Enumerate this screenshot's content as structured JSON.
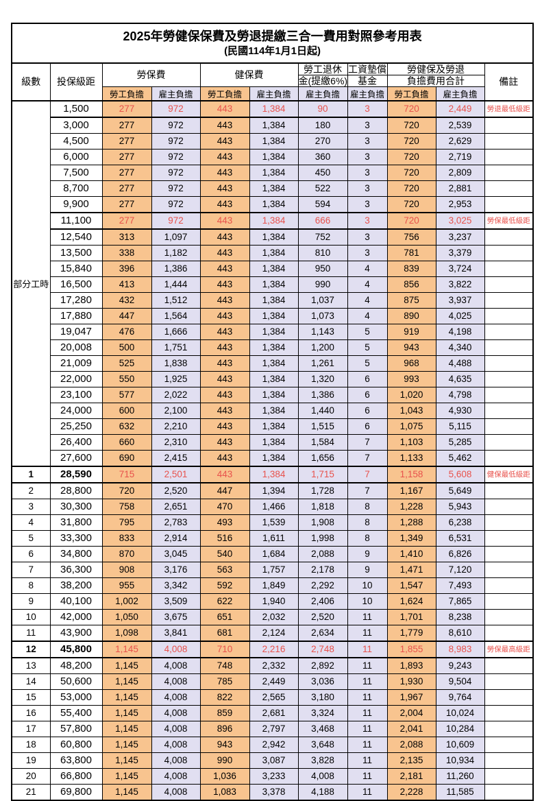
{
  "page": {
    "title": "2025年勞健保保費及勞退提繳三合一費用對照參考用表",
    "subtitle": "(民國114年1月1日起)"
  },
  "columns": {
    "level": "級數",
    "bracket": "投保級距",
    "labor_fee": "勞保費",
    "health_fee": "健保費",
    "pension_line1": "勞工退休",
    "pension_line2": "金(提繳6%)",
    "wage_fund_line1": "工資墊償",
    "wage_fund_line2": "基金",
    "total_line1": "勞健保及勞退",
    "total_line2": "負擔費用合計",
    "remark": "備註",
    "employee_share": "勞工負擔",
    "employer_share": "雇主負擔"
  },
  "part_time_label": "部分工時",
  "colors": {
    "employee_bg": "#F8C48F",
    "employer_bg": "#E1DFF1",
    "highlight_text": "#E8524C"
  },
  "rows": [
    {
      "level": "",
      "bracket": "1,500",
      "values": [
        "277",
        "972",
        "443",
        "1,384",
        "90",
        "3",
        "720",
        "2,449"
      ],
      "remark": "勞退最低級距",
      "highlight": true
    },
    {
      "level": "",
      "bracket": "3,000",
      "values": [
        "277",
        "972",
        "443",
        "1,384",
        "180",
        "3",
        "720",
        "2,539"
      ],
      "remark": ""
    },
    {
      "level": "",
      "bracket": "4,500",
      "values": [
        "277",
        "972",
        "443",
        "1,384",
        "270",
        "3",
        "720",
        "2,629"
      ],
      "remark": ""
    },
    {
      "level": "",
      "bracket": "6,000",
      "values": [
        "277",
        "972",
        "443",
        "1,384",
        "360",
        "3",
        "720",
        "2,719"
      ],
      "remark": ""
    },
    {
      "level": "",
      "bracket": "7,500",
      "values": [
        "277",
        "972",
        "443",
        "1,384",
        "450",
        "3",
        "720",
        "2,809"
      ],
      "remark": ""
    },
    {
      "level": "",
      "bracket": "8,700",
      "values": [
        "277",
        "972",
        "443",
        "1,384",
        "522",
        "3",
        "720",
        "2,881"
      ],
      "remark": ""
    },
    {
      "level": "",
      "bracket": "9,900",
      "values": [
        "277",
        "972",
        "443",
        "1,384",
        "594",
        "3",
        "720",
        "2,953"
      ],
      "remark": ""
    },
    {
      "level": "",
      "bracket": "11,100",
      "values": [
        "277",
        "972",
        "443",
        "1,384",
        "666",
        "3",
        "720",
        "3,025"
      ],
      "remark": "勞保最低級距",
      "highlight": true
    },
    {
      "level": "",
      "bracket": "12,540",
      "values": [
        "313",
        "1,097",
        "443",
        "1,384",
        "752",
        "3",
        "756",
        "3,237"
      ],
      "remark": ""
    },
    {
      "level": "",
      "bracket": "13,500",
      "values": [
        "338",
        "1,182",
        "443",
        "1,384",
        "810",
        "3",
        "781",
        "3,379"
      ],
      "remark": ""
    },
    {
      "level": "",
      "bracket": "15,840",
      "values": [
        "396",
        "1,386",
        "443",
        "1,384",
        "950",
        "4",
        "839",
        "3,724"
      ],
      "remark": ""
    },
    {
      "level": "",
      "bracket": "16,500",
      "values": [
        "413",
        "1,444",
        "443",
        "1,384",
        "990",
        "4",
        "856",
        "3,822"
      ],
      "remark": ""
    },
    {
      "level": "",
      "bracket": "17,280",
      "values": [
        "432",
        "1,512",
        "443",
        "1,384",
        "1,037",
        "4",
        "875",
        "3,937"
      ],
      "remark": ""
    },
    {
      "level": "",
      "bracket": "17,880",
      "values": [
        "447",
        "1,564",
        "443",
        "1,384",
        "1,073",
        "4",
        "890",
        "4,025"
      ],
      "remark": ""
    },
    {
      "level": "",
      "bracket": "19,047",
      "values": [
        "476",
        "1,666",
        "443",
        "1,384",
        "1,143",
        "5",
        "919",
        "4,198"
      ],
      "remark": ""
    },
    {
      "level": "",
      "bracket": "20,008",
      "values": [
        "500",
        "1,751",
        "443",
        "1,384",
        "1,200",
        "5",
        "943",
        "4,340"
      ],
      "remark": ""
    },
    {
      "level": "",
      "bracket": "21,009",
      "values": [
        "525",
        "1,838",
        "443",
        "1,384",
        "1,261",
        "5",
        "968",
        "4,488"
      ],
      "remark": ""
    },
    {
      "level": "",
      "bracket": "22,000",
      "values": [
        "550",
        "1,925",
        "443",
        "1,384",
        "1,320",
        "6",
        "993",
        "4,635"
      ],
      "remark": ""
    },
    {
      "level": "",
      "bracket": "23,100",
      "values": [
        "577",
        "2,022",
        "443",
        "1,384",
        "1,386",
        "6",
        "1,020",
        "4,798"
      ],
      "remark": ""
    },
    {
      "level": "",
      "bracket": "24,000",
      "values": [
        "600",
        "2,100",
        "443",
        "1,384",
        "1,440",
        "6",
        "1,043",
        "4,930"
      ],
      "remark": ""
    },
    {
      "level": "",
      "bracket": "25,250",
      "values": [
        "632",
        "2,210",
        "443",
        "1,384",
        "1,515",
        "6",
        "1,075",
        "5,115"
      ],
      "remark": ""
    },
    {
      "level": "",
      "bracket": "26,400",
      "values": [
        "660",
        "2,310",
        "443",
        "1,384",
        "1,584",
        "7",
        "1,103",
        "5,285"
      ],
      "remark": ""
    },
    {
      "level": "",
      "bracket": "27,600",
      "values": [
        "690",
        "2,415",
        "443",
        "1,384",
        "1,656",
        "7",
        "1,133",
        "5,462"
      ],
      "remark": ""
    },
    {
      "level": "1",
      "bracket": "28,590",
      "values": [
        "715",
        "2,501",
        "443",
        "1,384",
        "1,715",
        "7",
        "1,158",
        "5,608"
      ],
      "remark": "健保最低級距",
      "highlight": true,
      "bold": true
    },
    {
      "level": "2",
      "bracket": "28,800",
      "values": [
        "720",
        "2,520",
        "447",
        "1,394",
        "1,728",
        "7",
        "1,167",
        "5,649"
      ],
      "remark": ""
    },
    {
      "level": "3",
      "bracket": "30,300",
      "values": [
        "758",
        "2,651",
        "470",
        "1,466",
        "1,818",
        "8",
        "1,228",
        "5,943"
      ],
      "remark": ""
    },
    {
      "level": "4",
      "bracket": "31,800",
      "values": [
        "795",
        "2,783",
        "493",
        "1,539",
        "1,908",
        "8",
        "1,288",
        "6,238"
      ],
      "remark": ""
    },
    {
      "level": "5",
      "bracket": "33,300",
      "values": [
        "833",
        "2,914",
        "516",
        "1,611",
        "1,998",
        "8",
        "1,349",
        "6,531"
      ],
      "remark": ""
    },
    {
      "level": "6",
      "bracket": "34,800",
      "values": [
        "870",
        "3,045",
        "540",
        "1,684",
        "2,088",
        "9",
        "1,410",
        "6,826"
      ],
      "remark": ""
    },
    {
      "level": "7",
      "bracket": "36,300",
      "values": [
        "908",
        "3,176",
        "563",
        "1,757",
        "2,178",
        "9",
        "1,471",
        "7,120"
      ],
      "remark": ""
    },
    {
      "level": "8",
      "bracket": "38,200",
      "values": [
        "955",
        "3,342",
        "592",
        "1,849",
        "2,292",
        "10",
        "1,547",
        "7,493"
      ],
      "remark": ""
    },
    {
      "level": "9",
      "bracket": "40,100",
      "values": [
        "1,002",
        "3,509",
        "622",
        "1,940",
        "2,406",
        "10",
        "1,624",
        "7,865"
      ],
      "remark": ""
    },
    {
      "level": "10",
      "bracket": "42,000",
      "values": [
        "1,050",
        "3,675",
        "651",
        "2,032",
        "2,520",
        "11",
        "1,701",
        "8,238"
      ],
      "remark": ""
    },
    {
      "level": "11",
      "bracket": "43,900",
      "values": [
        "1,098",
        "3,841",
        "681",
        "2,124",
        "2,634",
        "11",
        "1,779",
        "8,610"
      ],
      "remark": ""
    },
    {
      "level": "12",
      "bracket": "45,800",
      "values": [
        "1,145",
        "4,008",
        "710",
        "2,216",
        "2,748",
        "11",
        "1,855",
        "8,983"
      ],
      "remark": "勞保最高級距",
      "highlight": true,
      "bold": true
    },
    {
      "level": "13",
      "bracket": "48,200",
      "values": [
        "1,145",
        "4,008",
        "748",
        "2,332",
        "2,892",
        "11",
        "1,893",
        "9,243"
      ],
      "remark": ""
    },
    {
      "level": "14",
      "bracket": "50,600",
      "values": [
        "1,145",
        "4,008",
        "785",
        "2,449",
        "3,036",
        "11",
        "1,930",
        "9,504"
      ],
      "remark": ""
    },
    {
      "level": "15",
      "bracket": "53,000",
      "values": [
        "1,145",
        "4,008",
        "822",
        "2,565",
        "3,180",
        "11",
        "1,967",
        "9,764"
      ],
      "remark": ""
    },
    {
      "level": "16",
      "bracket": "55,400",
      "values": [
        "1,145",
        "4,008",
        "859",
        "2,681",
        "3,324",
        "11",
        "2,004",
        "10,024"
      ],
      "remark": ""
    },
    {
      "level": "17",
      "bracket": "57,800",
      "values": [
        "1,145",
        "4,008",
        "896",
        "2,797",
        "3,468",
        "11",
        "2,041",
        "10,284"
      ],
      "remark": ""
    },
    {
      "level": "18",
      "bracket": "60,800",
      "values": [
        "1,145",
        "4,008",
        "943",
        "2,942",
        "3,648",
        "11",
        "2,088",
        "10,609"
      ],
      "remark": ""
    },
    {
      "level": "19",
      "bracket": "63,800",
      "values": [
        "1,145",
        "4,008",
        "990",
        "3,087",
        "3,828",
        "11",
        "2,135",
        "10,934"
      ],
      "remark": ""
    },
    {
      "level": "20",
      "bracket": "66,800",
      "values": [
        "1,145",
        "4,008",
        "1,036",
        "3,233",
        "4,008",
        "11",
        "2,181",
        "11,260"
      ],
      "remark": ""
    },
    {
      "level": "21",
      "bracket": "69,800",
      "values": [
        "1,145",
        "4,008",
        "1,083",
        "3,378",
        "4,188",
        "11",
        "2,228",
        "11,585"
      ],
      "remark": ""
    }
  ]
}
